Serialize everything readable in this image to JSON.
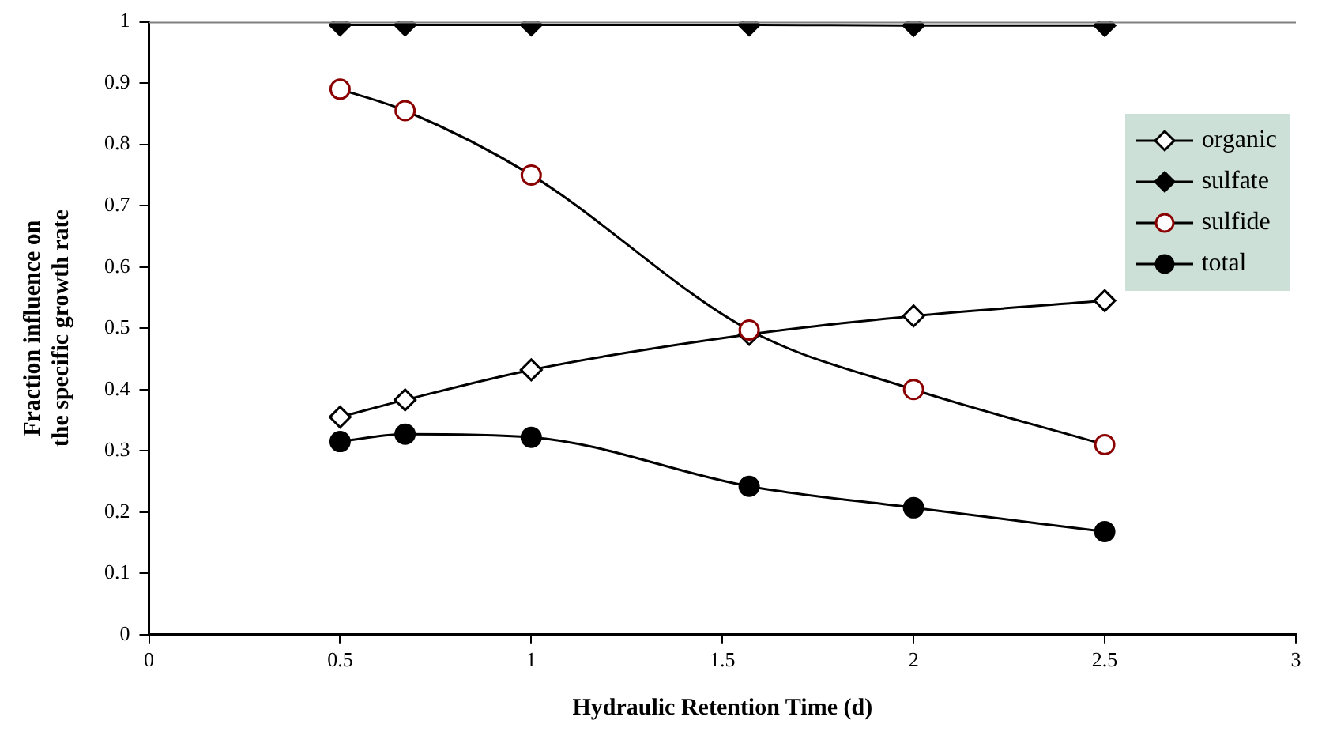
{
  "chart_data": {
    "type": "line",
    "xlabel": "Hydraulic Retention Time (d)",
    "ylabel": "Fraction influence on the specific growth rate",
    "x": [
      0.5,
      0.67,
      1,
      1.57,
      2,
      2.5
    ],
    "series": [
      {
        "name": "organic",
        "color": "#000000",
        "marker": "diamond",
        "values": [
          0.355,
          0.383,
          0.432,
          0.49,
          0.52,
          0.545
        ]
      },
      {
        "name": "sulfate",
        "color": "#000000",
        "marker": "diamond",
        "values": [
          0.995,
          0.995,
          0.995,
          0.995,
          0.994,
          0.994
        ]
      },
      {
        "name": "sulfide",
        "color": "#8b0000",
        "marker": "circle",
        "values": [
          0.89,
          0.855,
          0.75,
          0.497,
          0.4,
          0.31
        ]
      },
      {
        "name": "total",
        "color": "#000000",
        "marker": "circle",
        "values": [
          0.315,
          0.327,
          0.322,
          0.242,
          0.207,
          0.168
        ]
      }
    ],
    "xlim": [
      0,
      3
    ],
    "xticks": [
      0,
      0.5,
      1,
      1.5,
      2,
      2.5,
      3
    ],
    "ylim": [
      0,
      1
    ],
    "yticks": [
      0,
      0.1,
      0.2,
      0.3,
      0.4,
      0.5,
      0.6,
      0.7,
      0.8,
      0.9,
      1
    ],
    "grid": false,
    "legend": "top right",
    "line_style": "solid"
  }
}
